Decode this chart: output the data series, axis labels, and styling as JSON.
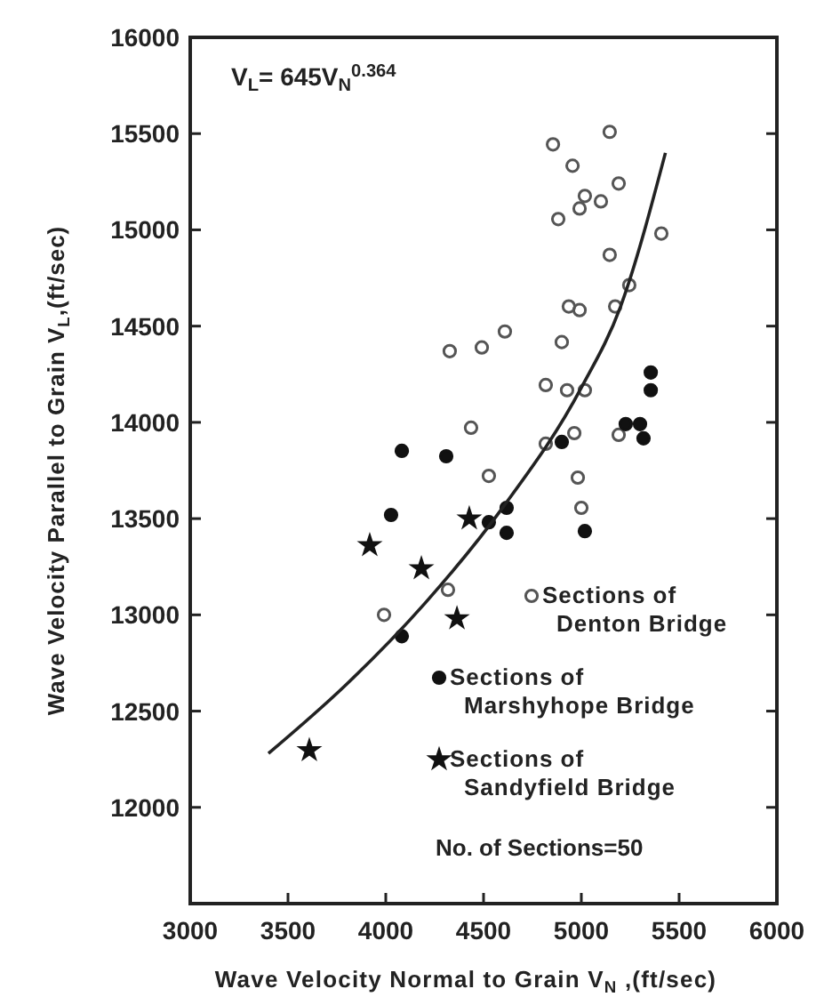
{
  "chart_data": {
    "type": "scatter",
    "xlabel": "Wave Velocity Normal to Grain V$_{N}$ ,(ft/sec)",
    "ylabel": "Wave Velocity Parallel to Grain V$_{L}$,(ft/sec)",
    "xlim": [
      3000,
      6000
    ],
    "xticks": [
      3000,
      3500,
      4000,
      4500,
      5000,
      5500,
      6000
    ],
    "ylim": [
      11500,
      16000
    ],
    "yticks": [
      12000,
      12500,
      13000,
      13500,
      14000,
      14500,
      15000,
      15500,
      16000
    ],
    "grid": false,
    "legend": "bottom right",
    "annotations": [
      "V$_{L}$= 645V$_{N}$$^{0.364}$",
      "No. of Sections=50"
    ],
    "series": [
      {
        "name": "Sections of Denton Bridge",
        "color": "#555555",
        "marker": "circle",
        "x": [
          4855,
          4955,
          5191,
          5018,
          5100,
          4991,
          4882,
          5145,
          5409,
          5145,
          5245,
          4936,
          4991,
          5173,
          4900,
          4818,
          4927,
          5018,
          4964,
          4818,
          5191,
          4982,
          5000,
          4327,
          4491,
          4609,
          4436,
          4527,
          4318,
          3991
        ],
        "values": [
          15444,
          15333,
          15241,
          15176,
          15148,
          15111,
          15056,
          15509,
          14981,
          14870,
          14713,
          14602,
          14583,
          14602,
          14417,
          14194,
          14167,
          14167,
          13944,
          13889,
          13935,
          13713,
          13556,
          14370,
          14389,
          14472,
          13972,
          13722,
          13130,
          13000
        ]
      },
      {
        "name": "Sections of Marshyhope Bridge",
        "color": "#111111",
        "marker": "circle",
        "x": [
          5355,
          5355,
          5227,
          5300,
          5318,
          4900,
          5018,
          4082,
          4309,
          4027,
          4618,
          4527,
          4618,
          4082
        ],
        "values": [
          14259,
          14167,
          13991,
          13991,
          13917,
          13898,
          13435,
          13852,
          13824,
          13519,
          13556,
          13481,
          13426,
          12889
        ]
      },
      {
        "name": "Sections of Sandyfield Bridge",
        "color": "#111111",
        "marker": "star",
        "x": [
          3918,
          4182,
          4427,
          4364,
          3609
        ],
        "values": [
          13361,
          13241,
          13500,
          12981,
          12296
        ]
      },
      {
        "type": "line",
        "color": "#222222",
        "marker": "none",
        "x": [
          3400,
          3800,
          4200,
          4600,
          5000,
          5200,
          5430
        ],
        "values": [
          12280,
          12640,
          13060,
          13560,
          14180,
          14600,
          15400
        ]
      }
    ]
  }
}
